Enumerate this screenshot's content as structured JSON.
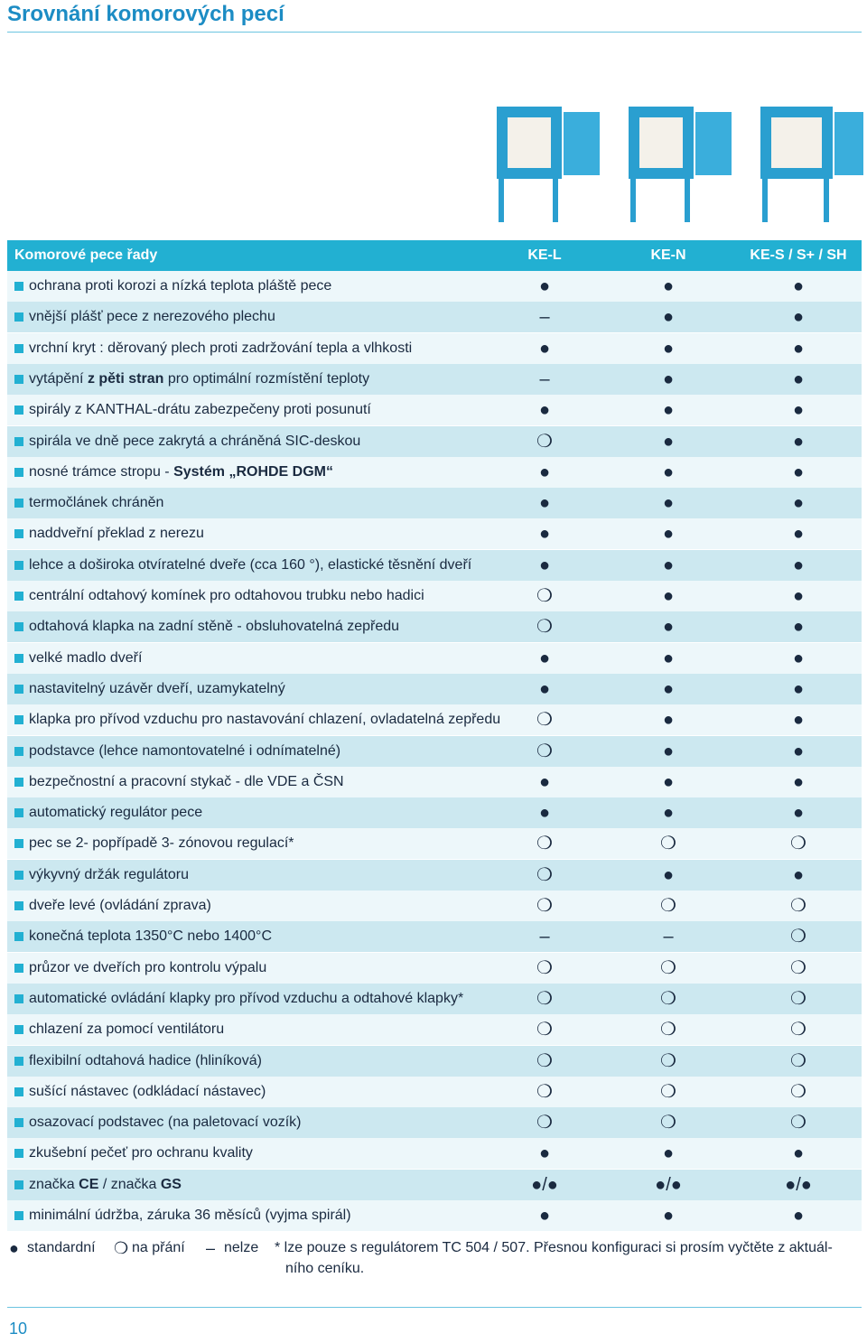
{
  "header": {
    "title": "Srovnání komorových pecí"
  },
  "table": {
    "columns": [
      "Komorové pece řady",
      "KE-L",
      "KE-N",
      "KE-S / S+ / SH"
    ],
    "rows": [
      {
        "label": [
          "ochrana proti korozi a nízká teplota pláště pece"
        ],
        "cells": [
          "●",
          "●",
          "●"
        ]
      },
      {
        "label": [
          "vnější plášť pece z nerezového plechu"
        ],
        "cells": [
          "–",
          "●",
          "●"
        ]
      },
      {
        "label": [
          "vrchní kryt : děrovaný plech proti zadržování tepla a vlhkosti"
        ],
        "cells": [
          "●",
          "●",
          "●"
        ]
      },
      {
        "label": [
          "vytápění ",
          "z pěti stran",
          " pro optimální rozmístění teploty"
        ],
        "cells": [
          "–",
          "●",
          "●"
        ]
      },
      {
        "label": [
          "spirály z KANTHAL-drátu zabezpečeny proti posunutí"
        ],
        "cells": [
          "●",
          "●",
          "●"
        ]
      },
      {
        "label": [
          "spirála ve dně pece zakrytá a chráněná SIC-deskou"
        ],
        "cells": [
          "❍",
          "●",
          "●"
        ]
      },
      {
        "label": [
          "nosné trámce stropu - ",
          "Systém „ROHDE DGM“"
        ],
        "cells": [
          "●",
          "●",
          "●"
        ]
      },
      {
        "label": [
          "termočlánek chráněn"
        ],
        "cells": [
          "●",
          "●",
          "●"
        ]
      },
      {
        "label": [
          "naddveřní překlad z nerezu"
        ],
        "cells": [
          "●",
          "●",
          "●"
        ]
      },
      {
        "label": [
          "lehce a doširoka otvíratelné dveře (cca 160 °), elastické těsnění dveří"
        ],
        "cells": [
          "●",
          "●",
          "●"
        ]
      },
      {
        "label": [
          "centrální odtahový komínek pro odtahovou trubku nebo hadici"
        ],
        "cells": [
          "❍",
          "●",
          "●"
        ]
      },
      {
        "label": [
          "odtahová klapka na zadní stěně - obsluhovatelná zepředu"
        ],
        "cells": [
          "❍",
          "●",
          "●"
        ]
      },
      {
        "label": [
          "velké madlo dveří"
        ],
        "cells": [
          "●",
          "●",
          "●"
        ]
      },
      {
        "label": [
          "nastavitelný uzávěr dveří, uzamykatelný"
        ],
        "cells": [
          "●",
          "●",
          "●"
        ]
      },
      {
        "label": [
          "klapka pro přívod vzduchu pro nastavování chlazení, ovladatelná zepředu"
        ],
        "cells": [
          "❍",
          "●",
          "●"
        ]
      },
      {
        "label": [
          "podstavce (lehce namontovatelné i odnímatelné)"
        ],
        "cells": [
          "❍",
          "●",
          "●"
        ]
      },
      {
        "label": [
          "bezpečnostní a pracovní stykač - dle VDE a ČSN"
        ],
        "cells": [
          "●",
          "●",
          "●"
        ]
      },
      {
        "label": [
          "automatický regulátor pece"
        ],
        "cells": [
          "●",
          "●",
          "●"
        ]
      },
      {
        "label": [
          "pec se 2- popřípadě 3- zónovou regulací*"
        ],
        "cells": [
          "❍",
          "❍",
          "❍"
        ]
      },
      {
        "label": [
          "výkyvný držák regulátoru"
        ],
        "cells": [
          "❍",
          "●",
          "●"
        ]
      },
      {
        "label": [
          "dveře levé (ovládání zprava)"
        ],
        "cells": [
          "❍",
          "❍",
          "❍"
        ]
      },
      {
        "label": [
          "konečná teplota 1350°C nebo 1400°C"
        ],
        "cells": [
          "–",
          "–",
          "❍"
        ]
      },
      {
        "label": [
          "průzor ve dveřích pro kontrolu výpalu"
        ],
        "cells": [
          "❍",
          "❍",
          "❍"
        ]
      },
      {
        "label": [
          "automatické ovládání klapky pro přívod vzduchu a odtahové klapky*"
        ],
        "cells": [
          "❍",
          "❍",
          "❍"
        ]
      },
      {
        "label": [
          "chlazení za pomocí ventilátoru"
        ],
        "cells": [
          "❍",
          "❍",
          "❍"
        ]
      },
      {
        "label": [
          "flexibilní odtahová hadice (hliníková)"
        ],
        "cells": [
          "❍",
          "❍",
          "❍"
        ]
      },
      {
        "label": [
          "sušící nástavec (odkládací nástavec)"
        ],
        "cells": [
          "❍",
          "❍",
          "❍"
        ]
      },
      {
        "label": [
          "osazovací podstavec (na paletovací vozík)"
        ],
        "cells": [
          "❍",
          "❍",
          "❍"
        ]
      },
      {
        "label": [
          "zkušební pečeť pro ochranu kvality"
        ],
        "cells": [
          "●",
          "●",
          "●"
        ]
      },
      {
        "label": [
          "značka ",
          "CE",
          " / značka ",
          "GS"
        ],
        "cells": [
          "●/●",
          "●/●",
          "●/●"
        ]
      },
      {
        "label": [
          "minimální údržba, záruka 36 měsíců (vyjma spirál)"
        ],
        "cells": [
          "●",
          "●",
          "●"
        ]
      }
    ]
  },
  "legend": [
    {
      "symbol": "●",
      "text": "standardní"
    },
    {
      "symbol": "❍",
      "text": "na přání"
    },
    {
      "symbol": "–",
      "text": "nelze"
    }
  ],
  "footnote": [
    "* lze pouze s regulátorem TC 504 / 507. Přesnou konfiguraci si prosím vyčtěte z aktuál-",
    "ního ceníku."
  ],
  "page_number": "10"
}
